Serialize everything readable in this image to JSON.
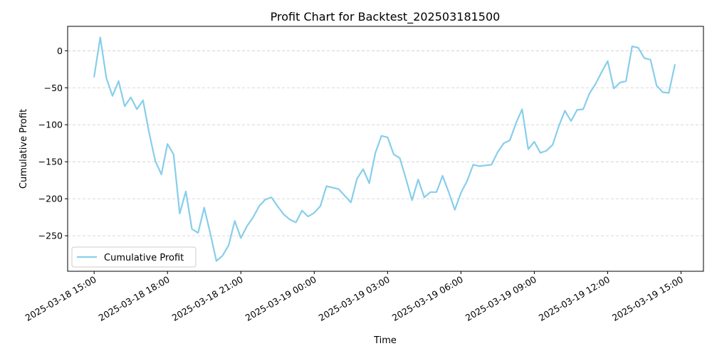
{
  "chart_data": {
    "type": "line",
    "title": "Profit Chart for Backtest_202503181500",
    "xlabel": "Time",
    "ylabel": "Cumulative Profit",
    "xlim": [
      "2025-03-18 13:55",
      "2025-03-19 15:55"
    ],
    "ylim": [
      -298,
      33
    ],
    "x_ticks": [
      "2025-03-18 15:00",
      "2025-03-18 18:00",
      "2025-03-18 21:00",
      "2025-03-19 00:00",
      "2025-03-19 03:00",
      "2025-03-19 06:00",
      "2025-03-19 09:00",
      "2025-03-19 12:00",
      "2025-03-19 15:00"
    ],
    "y_ticks": [
      0,
      -50,
      -100,
      -150,
      -200,
      -250
    ],
    "y_tick_labels": [
      "0",
      "−50",
      "−100",
      "−150",
      "−200",
      "−250"
    ],
    "grid": "horizontal dashed",
    "legend_position": "lower-left",
    "color": "#87ceeb",
    "series": [
      {
        "name": "Cumulative Profit",
        "x": [
          "2025-03-18 15:00",
          "2025-03-18 15:15",
          "2025-03-18 15:30",
          "2025-03-18 15:45",
          "2025-03-18 16:00",
          "2025-03-18 16:15",
          "2025-03-18 16:30",
          "2025-03-18 16:45",
          "2025-03-18 17:00",
          "2025-03-18 17:15",
          "2025-03-18 17:30",
          "2025-03-18 17:45",
          "2025-03-18 18:00",
          "2025-03-18 18:15",
          "2025-03-18 18:30",
          "2025-03-18 18:45",
          "2025-03-18 19:00",
          "2025-03-18 19:15",
          "2025-03-18 19:30",
          "2025-03-18 19:45",
          "2025-03-18 20:00",
          "2025-03-18 20:15",
          "2025-03-18 20:30",
          "2025-03-18 20:45",
          "2025-03-18 21:00",
          "2025-03-18 21:15",
          "2025-03-18 21:30",
          "2025-03-18 21:45",
          "2025-03-18 22:00",
          "2025-03-18 22:15",
          "2025-03-18 22:30",
          "2025-03-18 22:45",
          "2025-03-18 23:00",
          "2025-03-18 23:15",
          "2025-03-18 23:30",
          "2025-03-18 23:45",
          "2025-03-19 00:00",
          "2025-03-19 00:15",
          "2025-03-19 00:30",
          "2025-03-19 00:45",
          "2025-03-19 01:00",
          "2025-03-19 01:15",
          "2025-03-19 01:30",
          "2025-03-19 01:45",
          "2025-03-19 02:00",
          "2025-03-19 02:15",
          "2025-03-19 02:30",
          "2025-03-19 02:45",
          "2025-03-19 03:00",
          "2025-03-19 03:15",
          "2025-03-19 03:30",
          "2025-03-19 03:45",
          "2025-03-19 04:00",
          "2025-03-19 04:15",
          "2025-03-19 04:30",
          "2025-03-19 04:45",
          "2025-03-19 05:00",
          "2025-03-19 05:15",
          "2025-03-19 05:30",
          "2025-03-19 05:45",
          "2025-03-19 06:00",
          "2025-03-19 06:15",
          "2025-03-19 06:30",
          "2025-03-19 06:45",
          "2025-03-19 07:00",
          "2025-03-19 07:15",
          "2025-03-19 07:30",
          "2025-03-19 07:45",
          "2025-03-19 08:00",
          "2025-03-19 08:15",
          "2025-03-19 08:30",
          "2025-03-19 08:45",
          "2025-03-19 09:00",
          "2025-03-19 09:15",
          "2025-03-19 09:30",
          "2025-03-19 09:45",
          "2025-03-19 10:00",
          "2025-03-19 10:15",
          "2025-03-19 10:30",
          "2025-03-19 10:45",
          "2025-03-19 11:00",
          "2025-03-19 11:15",
          "2025-03-19 11:30",
          "2025-03-19 11:45",
          "2025-03-19 12:00",
          "2025-03-19 12:15",
          "2025-03-19 12:30",
          "2025-03-19 12:45",
          "2025-03-19 13:00",
          "2025-03-19 13:15",
          "2025-03-19 13:30",
          "2025-03-19 13:45",
          "2025-03-19 14:00",
          "2025-03-19 14:15",
          "2025-03-19 14:30",
          "2025-03-19 14:45"
        ],
        "y": [
          -35,
          18,
          -37,
          -61,
          -41,
          -75,
          -63,
          -79,
          -67,
          -111,
          -149,
          -167,
          -126,
          -140,
          -220,
          -190,
          -241,
          -246,
          -212,
          -247,
          -284,
          -277,
          -263,
          -230,
          -253,
          -237,
          -225,
          -210,
          -201,
          -198,
          -210,
          -221,
          -228,
          -232,
          -216,
          -224,
          -219,
          -210,
          -183,
          -185,
          -187,
          -196,
          -205,
          -173,
          -160,
          -179,
          -138,
          -115,
          -117,
          -140,
          -145,
          -173,
          -202,
          -174,
          -198,
          -191,
          -191,
          -169,
          -191,
          -215,
          -192,
          -176,
          -154,
          -156,
          -155,
          -154,
          -137,
          -125,
          -121,
          -98,
          -79,
          -133,
          -123,
          -138,
          -135,
          -127,
          -102,
          -81,
          -95,
          -80,
          -79,
          -58,
          -45,
          -29,
          -14,
          -51,
          -43,
          -41,
          6,
          4,
          -10,
          -12,
          -47,
          -56,
          -57,
          -19
        ]
      }
    ]
  }
}
